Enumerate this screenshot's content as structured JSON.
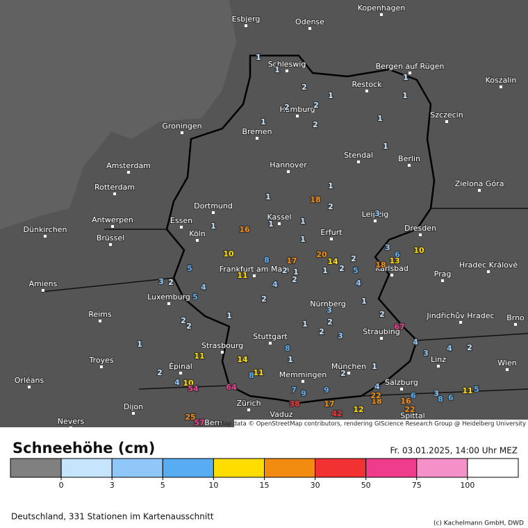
{
  "map": {
    "cities": [
      "Kopenhagen",
      "Esbjerg",
      "Odense",
      "Schleswig",
      "Bergen auf Rügen",
      "Restock",
      "Koszalin",
      "Hamburg",
      "Szczecin",
      "Groningen",
      "Bremen",
      "Stendal",
      "Berlin",
      "Amsterdam",
      "Hannover",
      "Rotterdam",
      "Zielona Góra",
      "Dortmund",
      "Kassel",
      "Leipzig",
      "Essen",
      "Antwerpen",
      "Dünkirchen",
      "Erfurt",
      "Dresden",
      "Köln",
      "Brüssel",
      "Frankfurt am Main",
      "Karlsbad",
      "Hradec Králové",
      "Prag",
      "Amiens",
      "Luxemburg",
      "Nürnberg",
      "Jindřichův Hradec",
      "Reims",
      "Brno",
      "Straubing",
      "Stuttgart",
      "Strasbourg",
      "Troyes",
      "Linz",
      "Wien",
      "Épinal",
      "München",
      "Memmingen",
      "Orléans",
      "Salzburg",
      "Zürich",
      "Dijon",
      "Vaduz",
      "Nevers",
      "Bern",
      "Spittal"
    ],
    "stations": [
      1,
      1,
      2,
      1,
      2,
      2,
      2,
      1,
      1,
      1,
      1,
      1,
      1,
      2,
      1,
      18,
      16,
      1,
      1,
      1,
      3,
      10,
      5,
      8,
      1,
      2,
      17,
      20,
      14,
      2,
      2,
      1,
      3,
      6,
      10,
      18,
      13,
      5,
      4,
      4,
      3,
      2,
      11,
      4,
      1,
      2,
      5,
      2,
      1,
      1,
      2,
      2,
      3,
      2,
      67,
      1,
      2,
      2,
      3,
      4,
      3,
      4,
      2,
      1,
      8,
      1,
      11,
      14,
      11,
      8,
      2,
      4,
      10,
      54,
      64,
      1,
      2,
      7,
      9,
      9,
      4,
      6,
      11,
      5,
      3,
      8,
      6,
      16,
      22,
      18,
      22,
      25,
      57,
      42,
      17,
      12,
      38
    ],
    "attribution": "Map data © OpenStreetMap contributors, rendering GIScience Research Group @ Heidelberg University"
  },
  "legend": {
    "title": "Schneehöhe (cm)",
    "date": "Fr. 03.01.2025, 14:00 Uhr MEZ",
    "colors": [
      "#808080",
      "#c6e4fc",
      "#8fc8f8",
      "#58acf2",
      "#ffdd00",
      "#f28c10",
      "#f23232",
      "#f03c8c",
      "#f590c8",
      "#ffffff"
    ],
    "ticks": [
      0,
      3,
      5,
      10,
      15,
      30,
      50,
      75,
      100
    ]
  },
  "footer": {
    "note": "Deutschland, 331 Stationen im Kartenausschnitt",
    "copyright": "(c) Kachelmann GmbH, DWD"
  }
}
